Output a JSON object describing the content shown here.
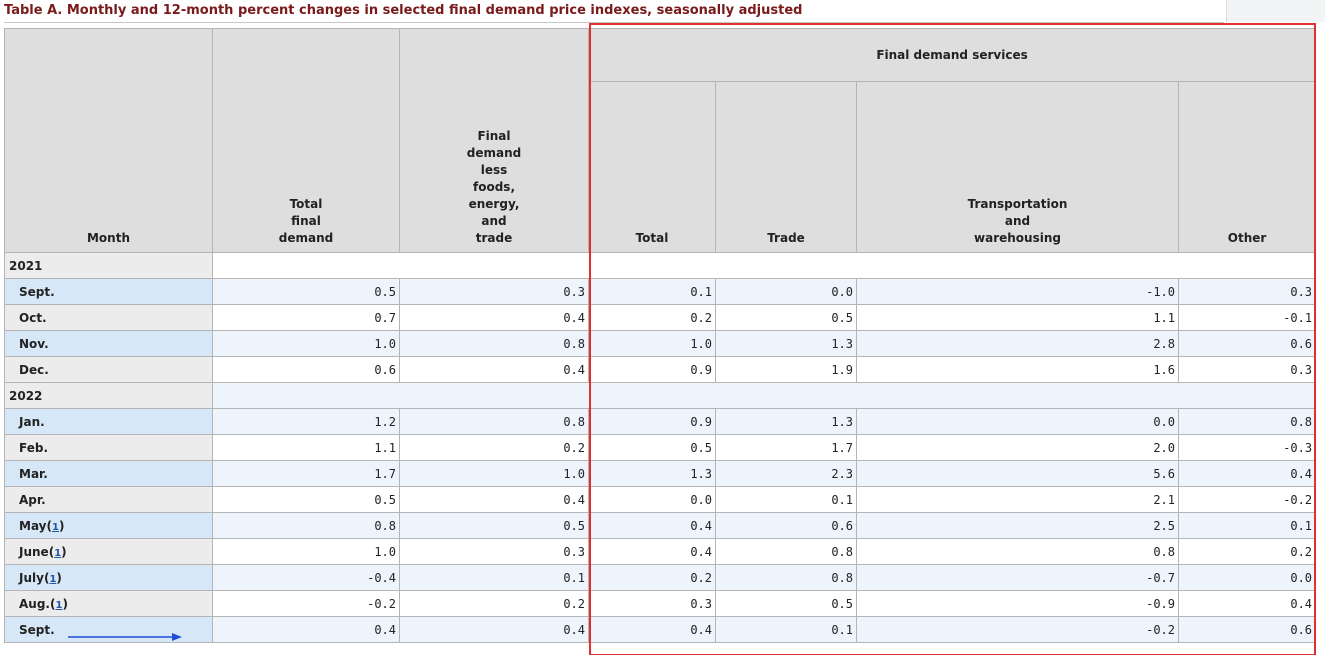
{
  "title": "Table A. Monthly and 12-month percent changes in selected final demand price indexes, seasonally adjusted",
  "headers": {
    "month": "Month",
    "total_final_demand": [
      "Total",
      "final",
      "demand"
    ],
    "less_foods": [
      "Final",
      "demand",
      "less",
      "foods,",
      "energy,",
      "and",
      "trade"
    ],
    "services_group": "Final demand services",
    "services_total": "Total",
    "trade": "Trade",
    "transport": [
      "Transportation",
      "and",
      "warehousing"
    ],
    "other": "Other"
  },
  "colors": {
    "highlight": "#e03030",
    "arrow": "#1f4fd6",
    "title": "#7a1a1a"
  },
  "rows": [
    {
      "type": "year",
      "label": "2021"
    },
    {
      "type": "data",
      "month": "Sept.",
      "note": "",
      "tfd": "0.5",
      "less": "0.3",
      "svc_total": "0.1",
      "trade": "0.0",
      "transport": "-1.0",
      "other": "0.3"
    },
    {
      "type": "data",
      "month": "Oct.",
      "note": "",
      "tfd": "0.7",
      "less": "0.4",
      "svc_total": "0.2",
      "trade": "0.5",
      "transport": "1.1",
      "other": "-0.1"
    },
    {
      "type": "data",
      "month": "Nov.",
      "note": "",
      "tfd": "1.0",
      "less": "0.8",
      "svc_total": "1.0",
      "trade": "1.3",
      "transport": "2.8",
      "other": "0.6"
    },
    {
      "type": "data",
      "month": "Dec.",
      "note": "",
      "tfd": "0.6",
      "less": "0.4",
      "svc_total": "0.9",
      "trade": "1.9",
      "transport": "1.6",
      "other": "0.3"
    },
    {
      "type": "year",
      "label": "2022"
    },
    {
      "type": "data",
      "month": "Jan.",
      "note": "",
      "tfd": "1.2",
      "less": "0.8",
      "svc_total": "0.9",
      "trade": "1.3",
      "transport": "0.0",
      "other": "0.8"
    },
    {
      "type": "data",
      "month": "Feb.",
      "note": "",
      "tfd": "1.1",
      "less": "0.2",
      "svc_total": "0.5",
      "trade": "1.7",
      "transport": "2.0",
      "other": "-0.3"
    },
    {
      "type": "data",
      "month": "Mar.",
      "note": "",
      "tfd": "1.7",
      "less": "1.0",
      "svc_total": "1.3",
      "trade": "2.3",
      "transport": "5.6",
      "other": "0.4"
    },
    {
      "type": "data",
      "month": "Apr.",
      "note": "",
      "tfd": "0.5",
      "less": "0.4",
      "svc_total": "0.0",
      "trade": "0.1",
      "transport": "2.1",
      "other": "-0.2"
    },
    {
      "type": "data",
      "month": "May",
      "note": "1",
      "tfd": "0.8",
      "less": "0.5",
      "svc_total": "0.4",
      "trade": "0.6",
      "transport": "2.5",
      "other": "0.1"
    },
    {
      "type": "data",
      "month": "June",
      "note": "1",
      "tfd": "1.0",
      "less": "0.3",
      "svc_total": "0.4",
      "trade": "0.8",
      "transport": "0.8",
      "other": "0.2"
    },
    {
      "type": "data",
      "month": "July",
      "note": "1",
      "tfd": "-0.4",
      "less": "0.1",
      "svc_total": "0.2",
      "trade": "0.8",
      "transport": "-0.7",
      "other": "0.0"
    },
    {
      "type": "data",
      "month": "Aug.",
      "note": "1",
      "tfd": "-0.2",
      "less": "0.2",
      "svc_total": "0.3",
      "trade": "0.5",
      "transport": "-0.9",
      "other": "0.4"
    },
    {
      "type": "data",
      "month": "Sept.",
      "note": "",
      "tfd": "0.4",
      "less": "0.4",
      "svc_total": "0.4",
      "trade": "0.1",
      "transport": "-0.2",
      "other": "0.6"
    }
  ]
}
